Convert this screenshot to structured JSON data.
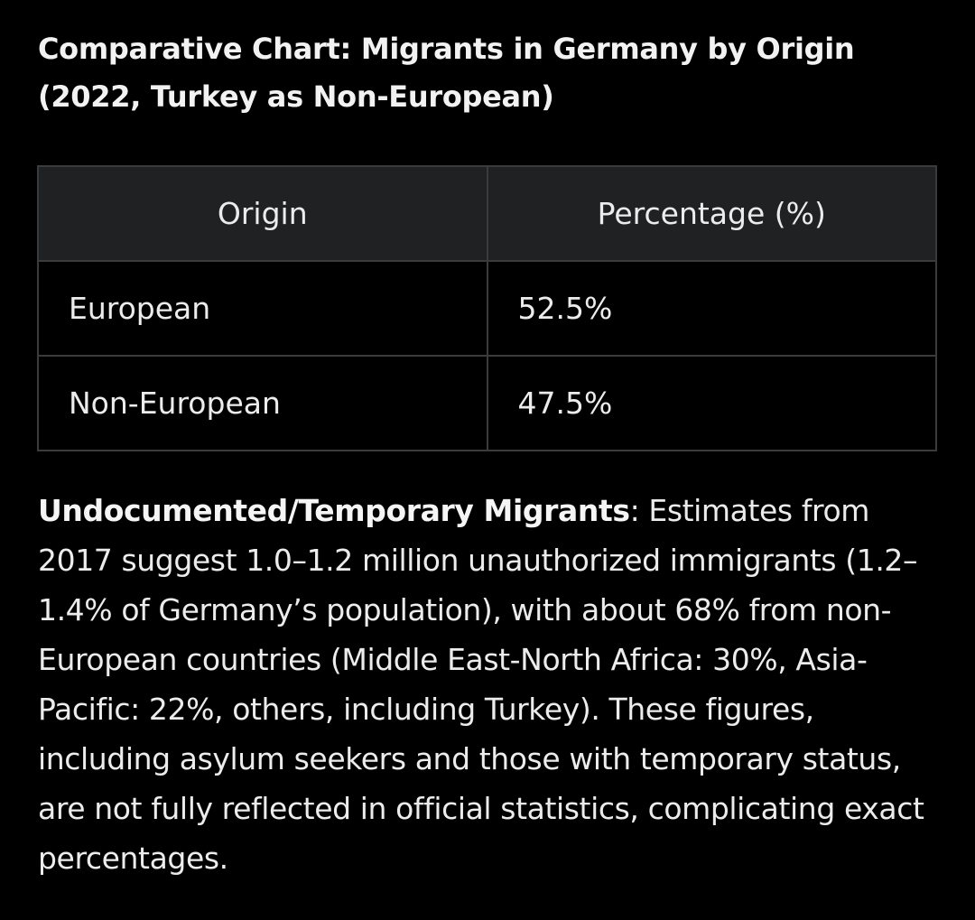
{
  "heading": {
    "title": "Comparative Chart: Migrants in Germany by Origin (2022, Turkey as Non-European)"
  },
  "table": {
    "header": [
      "Origin",
      "Percentage (%)"
    ],
    "rows": [
      [
        "European",
        "52.5%"
      ],
      [
        "Non-European",
        "47.5%"
      ]
    ]
  },
  "paragraph": {
    "label": "Undocumented/Temporary Migrants",
    "text": ": Estimates from 2017 suggest 1.0–1.2 million unauthorized immigrants (1.2–1.4% of Germany’s population), with about 68% from non-European countries (Middle East-North Africa: 30%, Asia-Pacific: 22%, others, including Turkey). These figures, including asylum seekers and those with temporary status, are not fully reflected in official statistics, complicating exact percentages."
  }
}
